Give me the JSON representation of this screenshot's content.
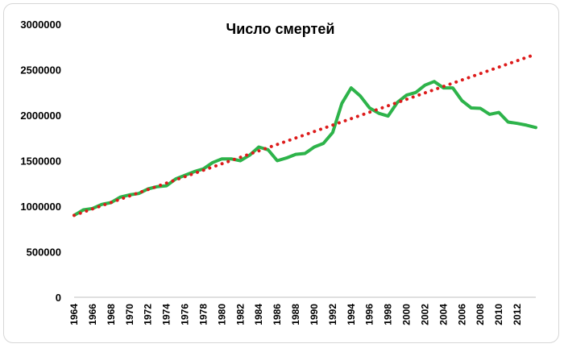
{
  "chart_data": {
    "type": "line",
    "title": "Число смертей",
    "xlabel": "",
    "ylabel": "",
    "ylim": [
      0,
      3000000
    ],
    "xlim": [
      1964,
      2014
    ],
    "y_ticks": [
      0,
      500000,
      1000000,
      1500000,
      2000000,
      2500000,
      3000000
    ],
    "y_tick_labels": [
      "0",
      "500000",
      "1000000",
      "1500000",
      "2000000",
      "2500000",
      "3000000"
    ],
    "x_tick_labels": [
      "1964",
      "1966",
      "1968",
      "1970",
      "1972",
      "1974",
      "1976",
      "1978",
      "1980",
      "1982",
      "1984",
      "1986",
      "1988",
      "1990",
      "1992",
      "1994",
      "1996",
      "1998",
      "2000",
      "2002",
      "2004",
      "2006",
      "2008",
      "2010",
      "2012"
    ],
    "grid": false,
    "legend": "none",
    "series": [
      {
        "color": "#2db34a",
        "style": "solid",
        "x": [
          1964,
          1965,
          1966,
          1967,
          1968,
          1969,
          1970,
          1971,
          1972,
          1973,
          1974,
          1975,
          1976,
          1977,
          1978,
          1979,
          1980,
          1981,
          1982,
          1983,
          1984,
          1985,
          1986,
          1987,
          1988,
          1989,
          1990,
          1991,
          1992,
          1993,
          1994,
          1995,
          1996,
          1997,
          1998,
          1999,
          2000,
          2001,
          2002,
          2003,
          2004,
          2005,
          2006,
          2007,
          2008,
          2009,
          2010,
          2011,
          2012,
          2013,
          2014
        ],
        "values": [
          900000,
          960000,
          975000,
          1020000,
          1040000,
          1100000,
          1125000,
          1140000,
          1190000,
          1215000,
          1225000,
          1300000,
          1340000,
          1380000,
          1410000,
          1480000,
          1520000,
          1520000,
          1500000,
          1560000,
          1650000,
          1620000,
          1500000,
          1530000,
          1570000,
          1580000,
          1650000,
          1690000,
          1810000,
          2130000,
          2300000,
          2210000,
          2080000,
          2020000,
          1990000,
          2140000,
          2220000,
          2250000,
          2330000,
          2370000,
          2300000,
          2300000,
          2160000,
          2080000,
          2075000,
          2010000,
          2030000,
          1925000,
          1910000,
          1890000,
          1865000
        ]
      },
      {
        "color": "#dd1b1b",
        "style": "dotted",
        "x": [
          1964,
          2014
        ],
        "values": [
          900000,
          2670000
        ]
      }
    ]
  }
}
